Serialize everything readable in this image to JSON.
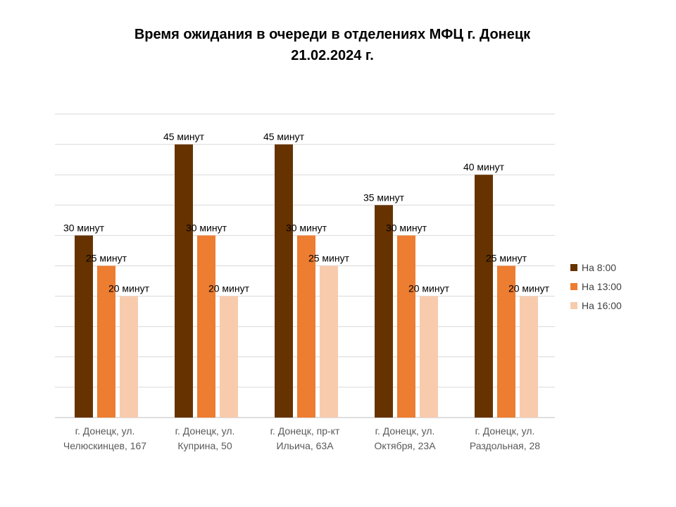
{
  "title_line1": "Время ожидания в очереди в отделениях МФЦ г. Донецк",
  "title_line2": "21.02.2024 г.",
  "chart_data": {
    "type": "bar",
    "categories": [
      [
        "г. Донецк, ул.",
        "Челюскинцев, 167"
      ],
      [
        "г. Донецк, ул.",
        "Куприна, 50"
      ],
      [
        "г. Донецк, пр-кт",
        "Ильича, 63А"
      ],
      [
        "г. Донецк, ул.",
        "Октября, 23А"
      ],
      [
        "г. Донецк, ул.",
        "Раздольная, 28"
      ]
    ],
    "series": [
      {
        "name": "На 8:00",
        "color": "#663300",
        "values": [
          30,
          45,
          45,
          35,
          40
        ]
      },
      {
        "name": "На 13:00",
        "color": "#ED7D31",
        "values": [
          25,
          30,
          30,
          30,
          25
        ]
      },
      {
        "name": "На 16:00",
        "color": "#F8CBAD",
        "values": [
          20,
          20,
          25,
          20,
          20
        ]
      }
    ],
    "value_suffix": " минут",
    "ylim": [
      0,
      50
    ],
    "grid": true,
    "legend_position": "right"
  }
}
